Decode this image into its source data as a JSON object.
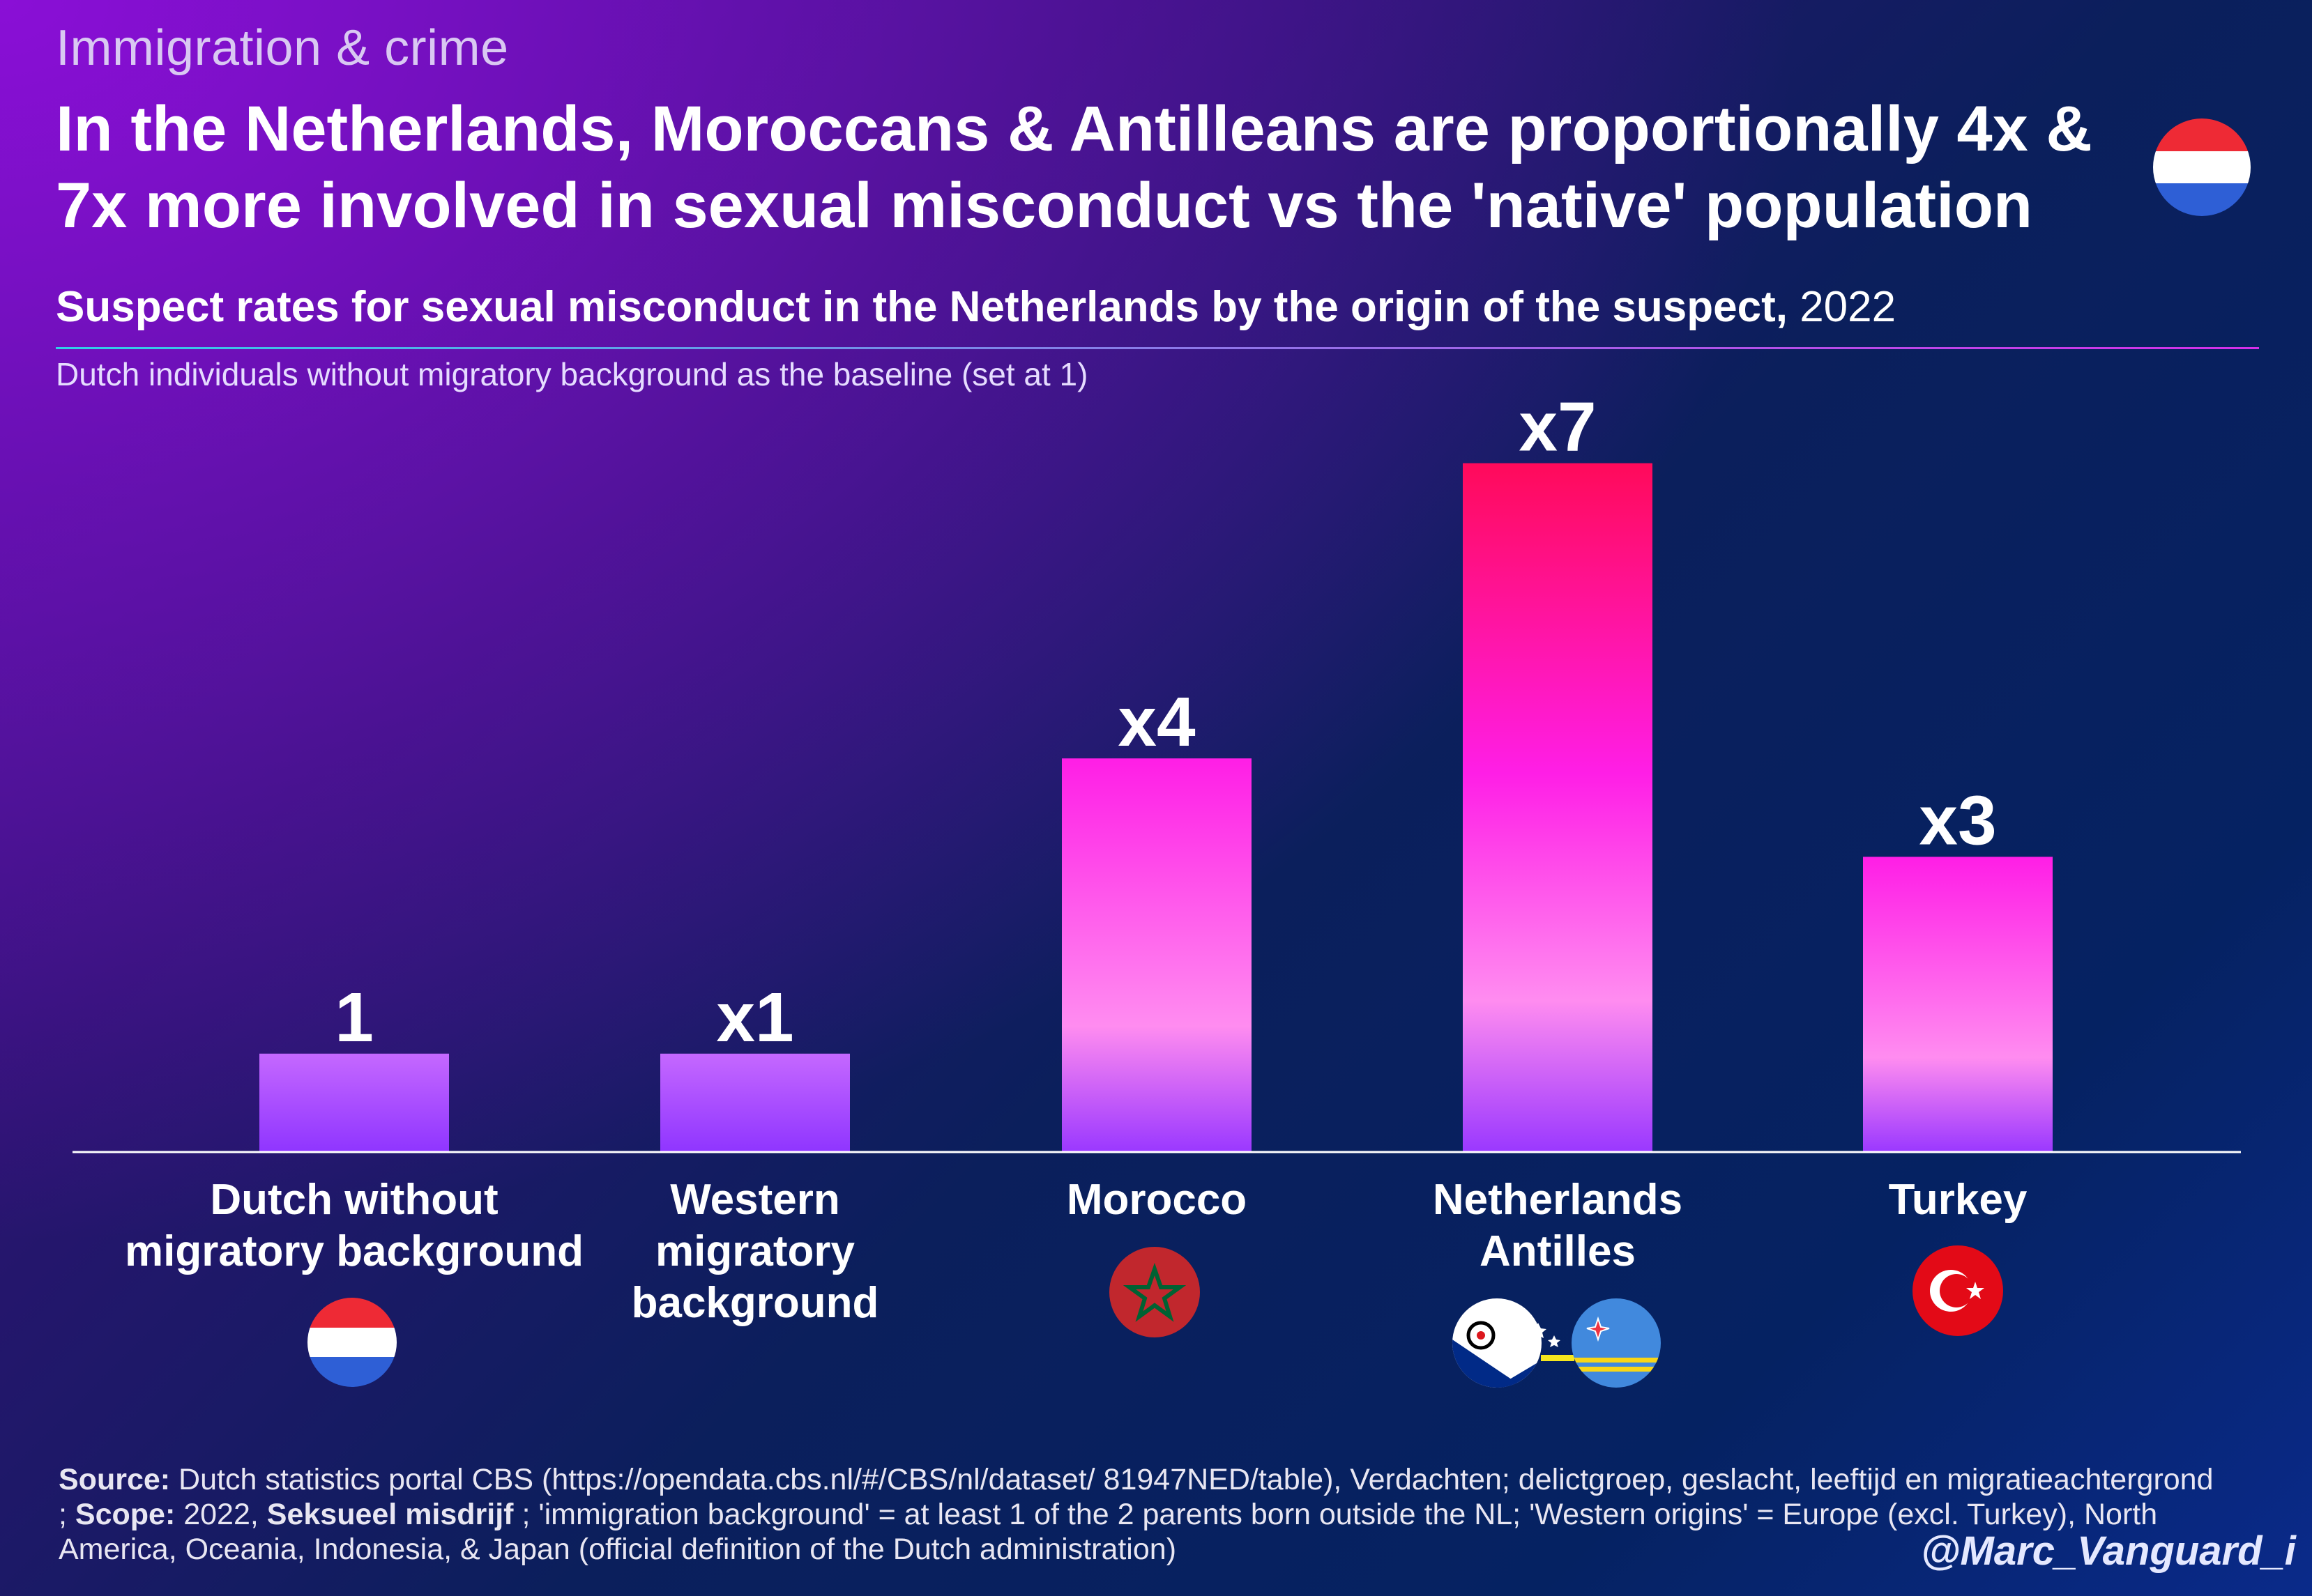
{
  "kicker": "Immigration & crime",
  "headline": "In the Netherlands, Moroccans & Antilleans are proportionally 4x & 7x more involved in sexual misconduct vs the 'native' population",
  "subtitle": {
    "main": "Suspect rates for sexual misconduct in the Netherlands by the origin of the suspect,",
    "year": "2022"
  },
  "note": "Dutch individuals without migratory background as the baseline (set at 1)",
  "chart_data": {
    "type": "bar",
    "categories": [
      "Dutch without migratory background",
      "Western migratory background",
      "Morocco",
      "Netherlands Antilles",
      "Turkey"
    ],
    "values": [
      1,
      1,
      4,
      7,
      3
    ],
    "data_labels": [
      "1",
      "x1",
      "x4",
      "x7",
      "x3"
    ],
    "label_lines": [
      [
        "Dutch without",
        "migratory background"
      ],
      [
        "Western",
        "migratory",
        "background"
      ],
      [
        "Morocco"
      ],
      [
        "Netherlands",
        "Antilles"
      ],
      [
        "Turkey"
      ]
    ],
    "flags": [
      "netherlands-flag-icon",
      "none",
      "morocco-flag-icon",
      "bonaire-aruba-flags-icon",
      "turkey-flag-icon"
    ],
    "grid": false,
    "colors": {
      "gradient_low": "#9a38ff",
      "gradient_mid": "#ff8cf0",
      "gradient_high": "#ff1ee6",
      "highlight_top": "#ff0a5a"
    }
  },
  "source": {
    "source_label": "Source:",
    "source_text": " Dutch statistics portal CBS (https://opendata.cbs.nl/#/CBS/nl/dataset/ 81947NED/table), Verdachten; delictgroep, geslacht, leeftijd en migratieachtergrond ; ",
    "scope_label": "Scope:",
    "scope_text": " 2022, ",
    "crime_label": "Seksueel misdrijf",
    "rest_text": " ; 'immigration background' = at least 1 of the 2 parents born outside the NL; 'Western origins' = Europe (excl. Turkey), North America, Oceania, Indonesia, & Japan (official definition of the Dutch administration)"
  },
  "handle": "@Marc_Vanguard_i"
}
